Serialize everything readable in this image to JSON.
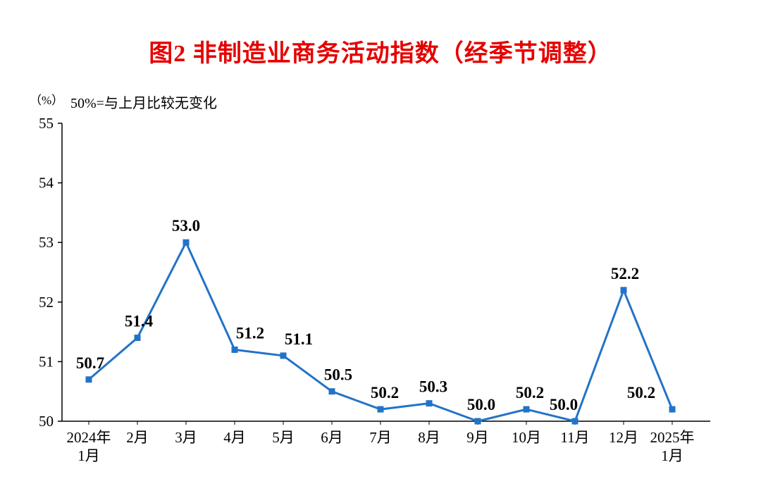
{
  "chart_data": {
    "type": "line",
    "title": "图2  非制造业商务活动指数（经季节调整）",
    "title_color": "#e60000",
    "unit_label": "（%）",
    "note": "50%=与上月比较无变化",
    "categories": [
      "2024年\n1月",
      "2月",
      "3月",
      "4月",
      "5月",
      "6月",
      "7月",
      "8月",
      "9月",
      "10月",
      "11月",
      "12月",
      "2025年\n1月"
    ],
    "values": [
      50.7,
      51.4,
      53.0,
      51.2,
      51.1,
      50.5,
      50.2,
      50.3,
      50.0,
      50.2,
      50.0,
      52.2,
      50.2
    ],
    "ylim": [
      50,
      55
    ],
    "yticks": [
      50,
      51,
      52,
      53,
      54,
      55
    ],
    "line_color": "#2273c8",
    "marker": "square",
    "grid": false,
    "legend": false,
    "xlabel": "",
    "ylabel": ""
  }
}
